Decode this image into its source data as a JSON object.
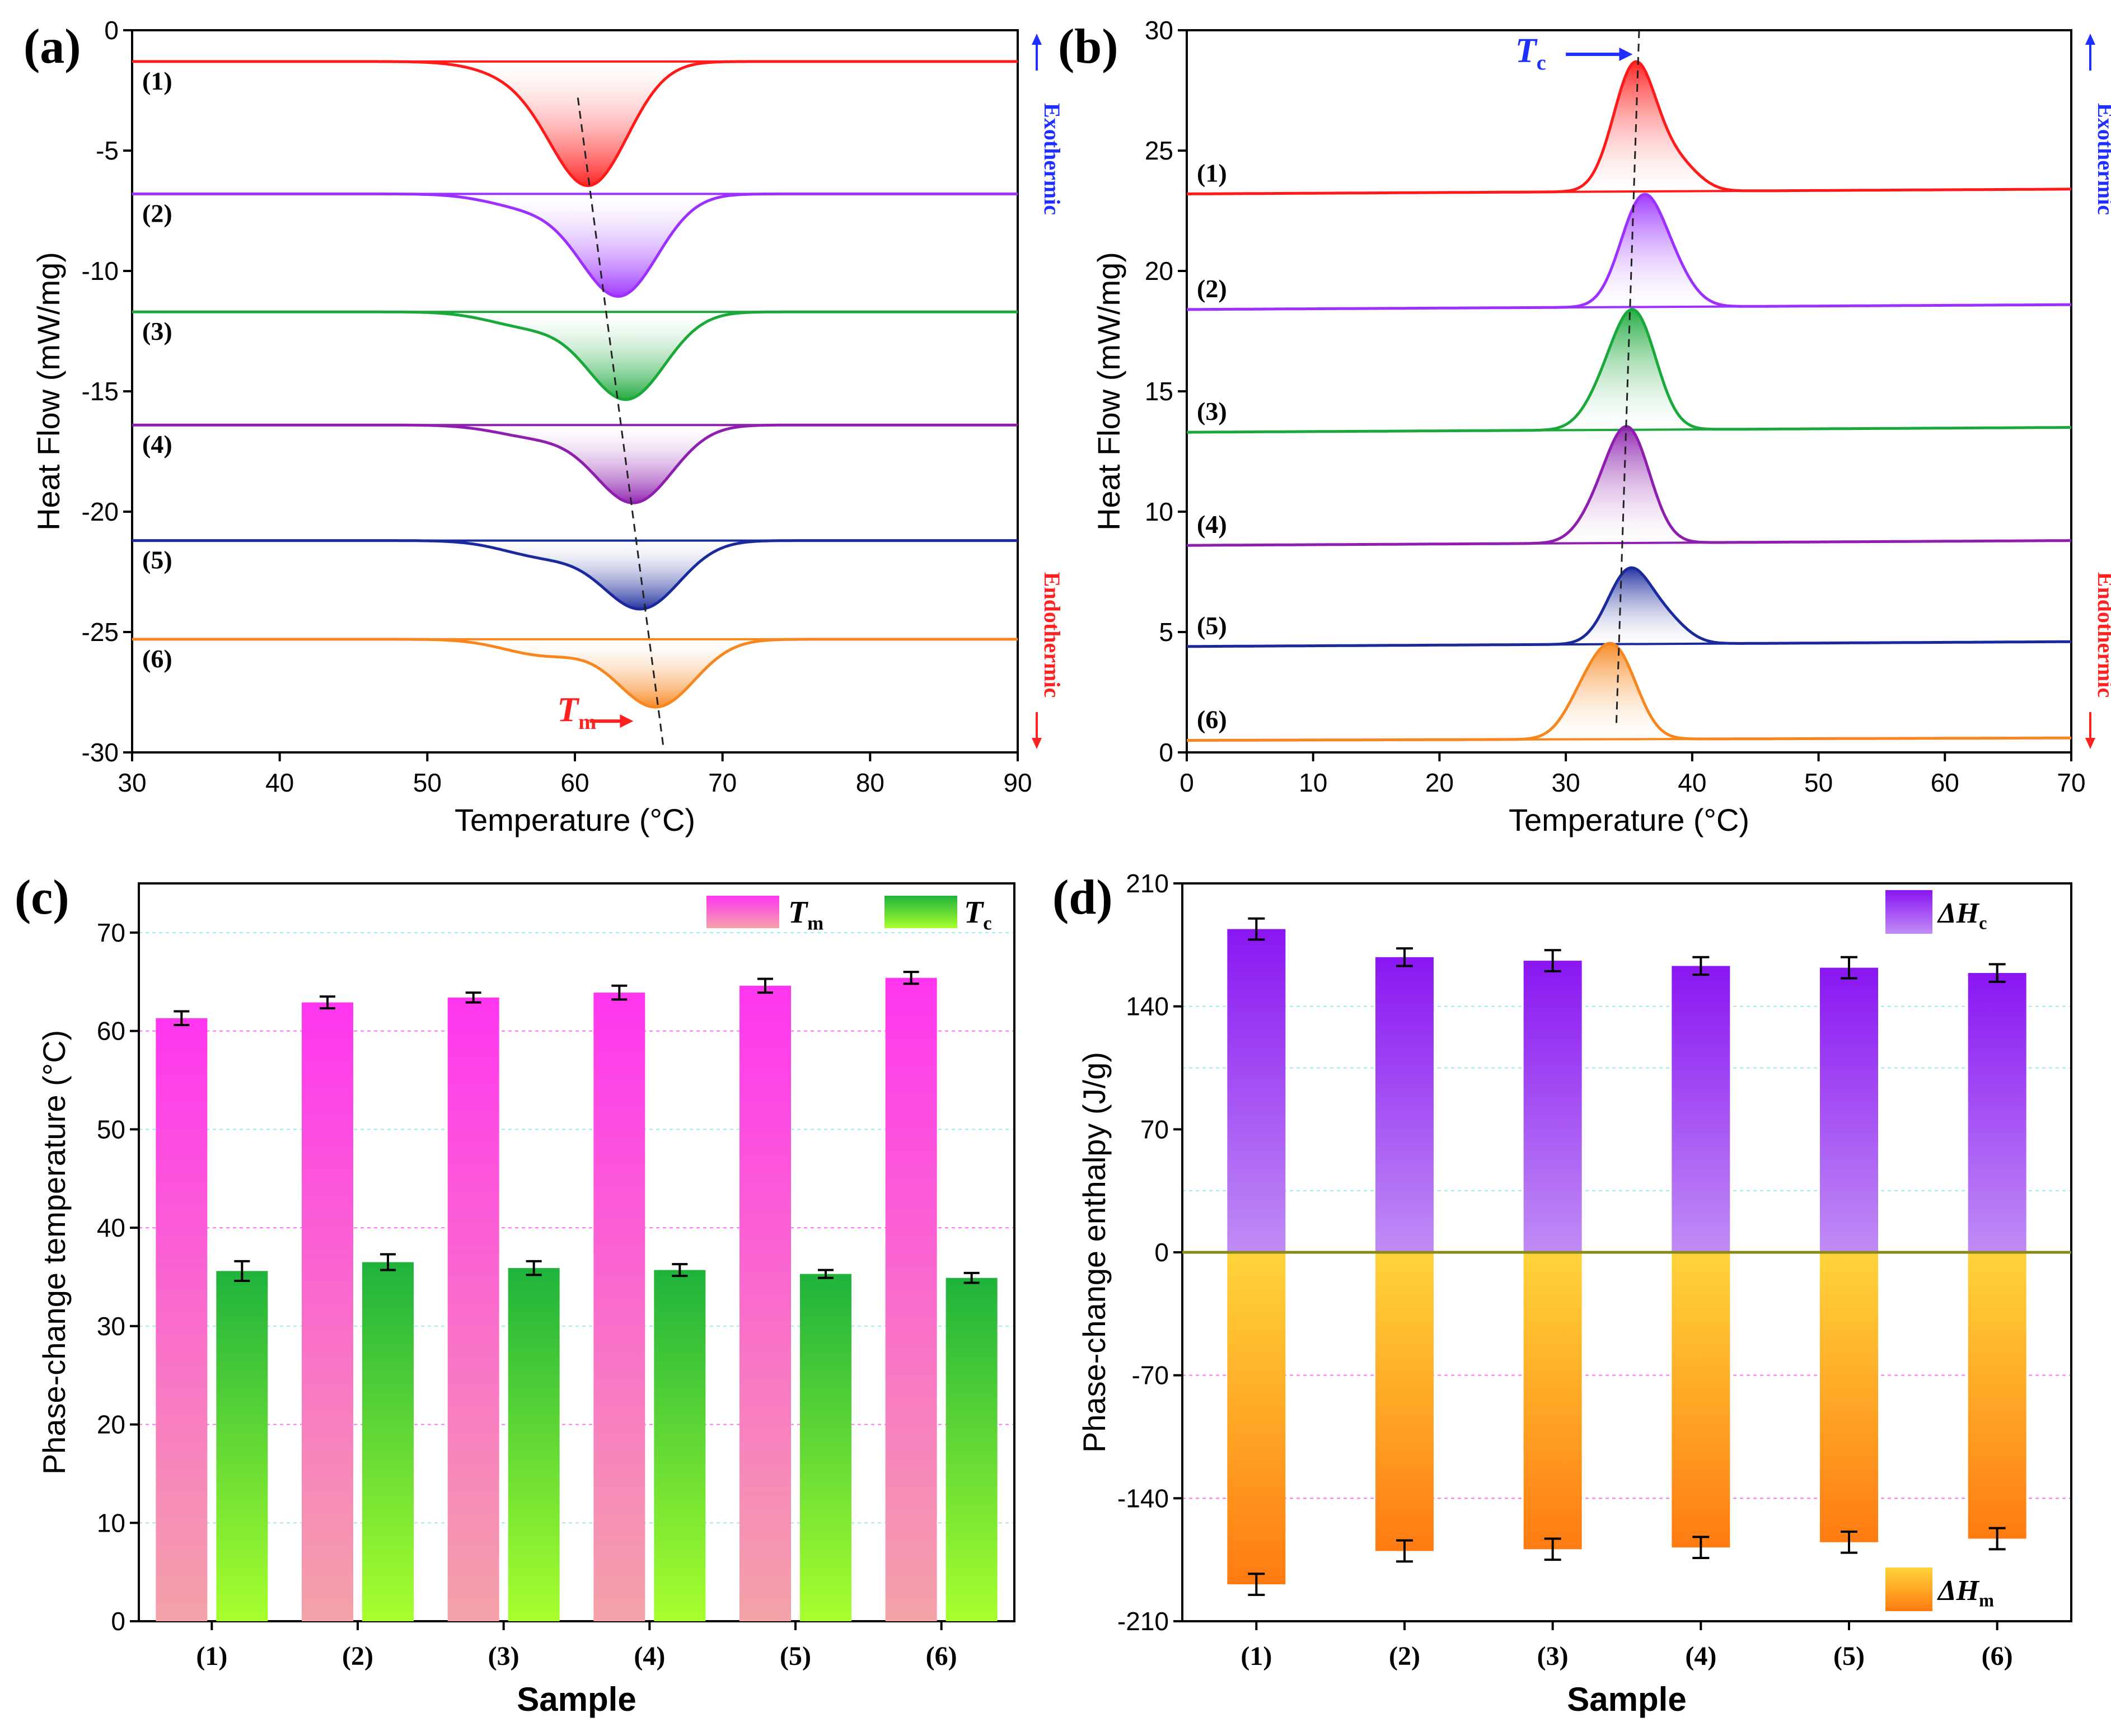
{
  "panels": {
    "a": "(a)",
    "b": "(b)",
    "c": "(c)",
    "d": "(d)"
  },
  "sample_labels": [
    "(1)",
    "(2)",
    "(3)",
    "(4)",
    "(5)",
    "(6)"
  ],
  "colors": {
    "s1": "#ff1a1a",
    "s2": "#9b30ff",
    "s3": "#1aa83a",
    "s4": "#8e1fae",
    "s5": "#1a2a9c",
    "s6": "#f7861e",
    "exo": "#1f2fff",
    "endo": "#ff2020",
    "tm_top": "#ff36f0",
    "tm_bottom": "#f4a2a8",
    "tc_top": "#1fb33c",
    "tc_bottom": "#a8ff2e",
    "hc_top": "#8a16f2",
    "hc_bottom": "#c08cf5",
    "hm_top": "#ffd43a",
    "hm_bottom": "#ff7b12"
  },
  "chart_data": [
    {
      "id": "a",
      "type": "line",
      "title": "",
      "xlabel": "Temperature (°C)",
      "ylabel": "Heat Flow (mW/mg)",
      "xlim": [
        30,
        90
      ],
      "ylim": [
        -30,
        0
      ],
      "xticks": [
        30,
        40,
        50,
        60,
        70,
        80,
        90
      ],
      "yticks": [
        0,
        -5,
        -10,
        -15,
        -20,
        -25,
        -30
      ],
      "exo_label": "Exothermic",
      "endo_label": "Endothermic",
      "peak_label": {
        "symbol": "T",
        "sub": "m"
      },
      "series": [
        {
          "name": "(1)",
          "baseline": -1.3,
          "peak_x": 61.0,
          "peak_y": -6.3,
          "shoulder_x": 56.5,
          "shoulder_y": -2.3,
          "onset": 50,
          "end": 68
        },
        {
          "name": "(2)",
          "baseline": -6.8,
          "peak_x": 63.0,
          "peak_y": -11.0,
          "shoulder_x": 57.0,
          "shoulder_y": -7.8,
          "onset": 51,
          "end": 69
        },
        {
          "name": "(3)",
          "baseline": -11.7,
          "peak_x": 63.5,
          "peak_y": -15.3,
          "shoulder_x": 57.0,
          "shoulder_y": -12.8,
          "onset": 52,
          "end": 70
        },
        {
          "name": "(4)",
          "baseline": -16.4,
          "peak_x": 64.0,
          "peak_y": -19.6,
          "shoulder_x": 57.5,
          "shoulder_y": -17.3,
          "onset": 52,
          "end": 71
        },
        {
          "name": "(5)",
          "baseline": -21.2,
          "peak_x": 64.5,
          "peak_y": -24.0,
          "shoulder_x": 58.0,
          "shoulder_y": -22.4,
          "onset": 52,
          "end": 71
        },
        {
          "name": "(6)",
          "baseline": -25.3,
          "peak_x": 65.5,
          "peak_y": -28.1,
          "shoulder_x": 58.0,
          "shoulder_y": -26.5,
          "onset": 51,
          "end": 74
        }
      ]
    },
    {
      "id": "b",
      "type": "line",
      "title": "",
      "xlabel": "Temperature (°C)",
      "ylabel": "Heat Flow (mW/mg)",
      "xlim": [
        0,
        70
      ],
      "ylim": [
        0,
        30
      ],
      "xticks": [
        0,
        10,
        20,
        30,
        40,
        50,
        60,
        70
      ],
      "yticks": [
        0,
        5,
        10,
        15,
        20,
        25,
        30
      ],
      "exo_label": "Exothermic",
      "endo_label": "Endothermic",
      "peak_label": {
        "symbol": "T",
        "sub": "c"
      },
      "series": [
        {
          "name": "(1)",
          "baseline": 23.2,
          "baseline_end": 23.4,
          "peak_x": 35.5,
          "peak_y": 28.5,
          "shoulder_x": 39.0,
          "shoulder_y": 25.0,
          "onset": 27,
          "end": 42
        },
        {
          "name": "(2)",
          "baseline": 18.4,
          "baseline_end": 18.6,
          "peak_x": 36.0,
          "peak_y": 22.7,
          "shoulder_x": 38.5,
          "shoulder_y": 20.5,
          "onset": 27,
          "end": 42
        },
        {
          "name": "(3)",
          "baseline": 13.3,
          "baseline_end": 13.5,
          "peak_x": 35.5,
          "peak_y": 17.9,
          "shoulder_x": 33.0,
          "shoulder_y": 15.5,
          "onset": 27,
          "end": 39
        },
        {
          "name": "(4)",
          "baseline": 8.6,
          "baseline_end": 8.8,
          "peak_x": 35.0,
          "peak_y": 13.1,
          "shoulder_x": 32.5,
          "shoulder_y": 10.5,
          "onset": 26,
          "end": 39
        },
        {
          "name": "(5)",
          "baseline": 4.4,
          "baseline_end": 4.6,
          "peak_x": 35.0,
          "peak_y": 7.4,
          "shoulder_x": 38.0,
          "shoulder_y": 6.0,
          "onset": 25,
          "end": 42
        },
        {
          "name": "(6)",
          "baseline": 0.5,
          "baseline_end": 0.6,
          "peak_x": 34.0,
          "peak_y": 3.9,
          "shoulder_x": 31.5,
          "shoulder_y": 3.4,
          "onset": 25,
          "end": 40
        }
      ]
    },
    {
      "id": "c",
      "type": "bar",
      "title": "",
      "xlabel": "Sample",
      "ylabel": "Phase-change temperature (°C)",
      "ylim": [
        0,
        75
      ],
      "yticks": [
        0,
        10,
        20,
        30,
        40,
        50,
        60,
        70
      ],
      "categories": [
        "(1)",
        "(2)",
        "(3)",
        "(4)",
        "(5)",
        "(6)"
      ],
      "series": [
        {
          "name": "T",
          "sub": "m",
          "values": [
            61.3,
            62.9,
            63.4,
            63.9,
            64.6,
            65.4
          ],
          "errors": [
            0.7,
            0.6,
            0.5,
            0.7,
            0.7,
            0.6
          ]
        },
        {
          "name": "T",
          "sub": "c",
          "values": [
            35.6,
            36.5,
            35.9,
            35.7,
            35.3,
            34.9
          ],
          "errors": [
            1.0,
            0.8,
            0.7,
            0.6,
            0.4,
            0.5
          ]
        }
      ]
    },
    {
      "id": "d",
      "type": "bar",
      "title": "",
      "xlabel": "Sample",
      "ylabel": "Phase-change enthalpy (J/g)",
      "ylim": [
        -210,
        210
      ],
      "yticks": [
        210,
        140,
        70,
        0,
        -70,
        -140,
        -210
      ],
      "categories": [
        "(1)",
        "(2)",
        "(3)",
        "(4)",
        "(5)",
        "(6)"
      ],
      "series": [
        {
          "name": "ΔH",
          "sub": "c",
          "values": [
            184,
            168,
            166,
            163,
            162,
            159
          ],
          "errors": [
            6,
            5,
            6,
            5,
            6,
            5
          ]
        },
        {
          "name": "ΔH",
          "sub": "m",
          "values": [
            -189,
            -170,
            -169,
            -168,
            -165,
            -163
          ],
          "errors": [
            6,
            6,
            6,
            6,
            6,
            6
          ]
        }
      ]
    }
  ]
}
